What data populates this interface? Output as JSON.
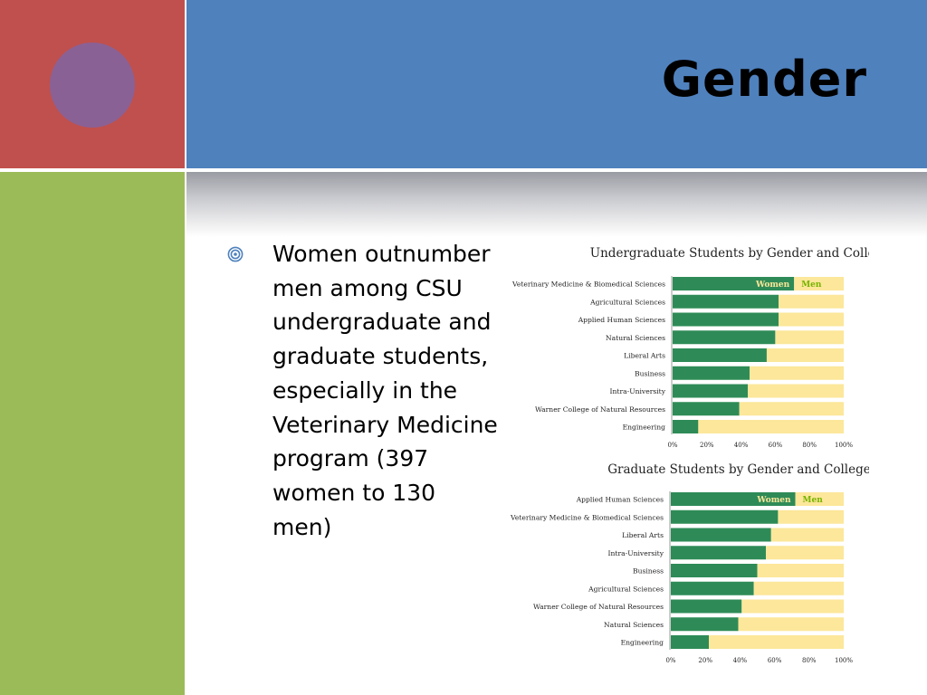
{
  "slide": {
    "title": "Gender",
    "bullet_text": "Women outnumber men among CSU undergraduate and graduate students, especially in the Veterinary Medicine program (397 women to 130 men)"
  },
  "colors": {
    "women": "#2e8b57",
    "men": "#fce79a",
    "women_label": "#fce79a",
    "men_label": "#77b300",
    "title_band": "#4f81bd",
    "red_block": "#c0504d",
    "green_block": "#9bbb59",
    "circle": "#8064a2",
    "bullet": "#4f81bd"
  },
  "icons": {
    "bullet": "target-bullet-icon"
  },
  "chart_data": [
    {
      "type": "bar",
      "orientation": "horizontal",
      "stacked": true,
      "title": "Undergraduate Students by Gender and College",
      "categories": [
        "Veterinary Medicine & Biomedical Sciences",
        "Agricultural Sciences",
        "Applied Human Sciences",
        "Natural Sciences",
        "Liberal Arts",
        "Business",
        "Intra-University",
        "Warner College of Natural Resources",
        "Engineering"
      ],
      "series": [
        {
          "name": "Women",
          "values": [
            71,
            62,
            62,
            60,
            55,
            45,
            44,
            39,
            15
          ]
        },
        {
          "name": "Men",
          "values": [
            29,
            38,
            38,
            40,
            45,
            55,
            56,
            61,
            85
          ]
        }
      ],
      "xlim": [
        0,
        100
      ],
      "xticks": [
        "0%",
        "20%",
        "40%",
        "60%",
        "80%",
        "100%"
      ],
      "legend": "inside-first-bar"
    },
    {
      "type": "bar",
      "orientation": "horizontal",
      "stacked": true,
      "title": "Graduate Students by Gender and College",
      "categories": [
        "Applied Human Sciences",
        "Veterinary Medicine & Biomedical Sciences",
        "Liberal Arts",
        "Intra-University",
        "Business",
        "Agricultural Sciences",
        "Warner College of Natural Resources",
        "Natural Sciences",
        "Engineering"
      ],
      "series": [
        {
          "name": "Women",
          "values": [
            72,
            62,
            58,
            55,
            50,
            48,
            41,
            39,
            22
          ]
        },
        {
          "name": "Men",
          "values": [
            28,
            38,
            42,
            45,
            50,
            52,
            59,
            61,
            78
          ]
        }
      ],
      "xlim": [
        0,
        100
      ],
      "xticks": [
        "0%",
        "20%",
        "40%",
        "60%",
        "80%",
        "100%"
      ],
      "legend": "inside-first-bar"
    }
  ]
}
